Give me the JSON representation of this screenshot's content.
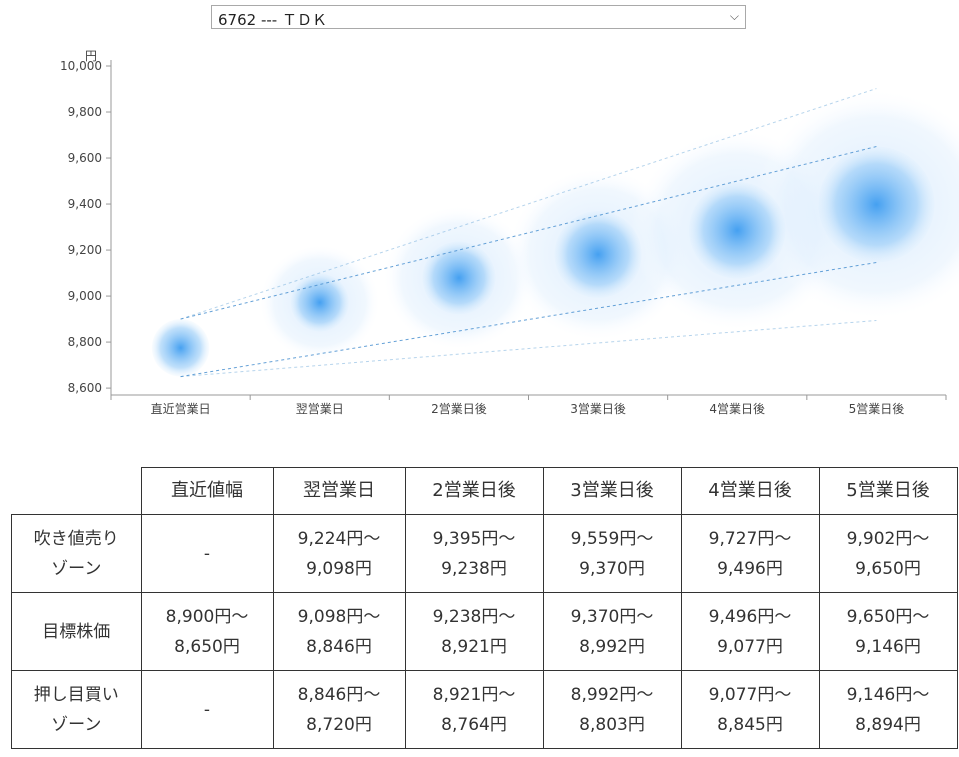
{
  "selector": {
    "value": "6762 ---  ＴＤＫ",
    "arrow": "chevron-down-icon"
  },
  "chart_data": {
    "type": "scatter",
    "unit_label": "円",
    "categories": [
      "直近営業日",
      "翌営業日",
      "2営業日後",
      "3営業日後",
      "4営業日後",
      "5営業日後"
    ],
    "yticks": [
      "10,000",
      "9,800",
      "9,600",
      "9,400",
      "9,200",
      "9,000",
      "8,800",
      "8,600"
    ],
    "ylim": [
      8570,
      10000
    ],
    "center": [
      8775,
      8972,
      9079,
      9181,
      9286,
      9398
    ],
    "inner_band_upper": [
      8900,
      9098,
      9238,
      9370,
      9496,
      9650
    ],
    "inner_band_lower": [
      8650,
      8846,
      8921,
      8992,
      9077,
      9146
    ],
    "outer_band_upper": [
      8900,
      9224,
      9395,
      9559,
      9727,
      9902
    ],
    "outer_band_lower": [
      8650,
      8720,
      8764,
      8803,
      8845,
      8894
    ],
    "colors": {
      "bubble": "#3d9cf0",
      "guide": "#7ab0dc",
      "axis": "#999999"
    }
  },
  "table": {
    "headers": [
      "",
      "直近値幅",
      "翌営業日",
      "2営業日後",
      "3営業日後",
      "4営業日後",
      "5営業日後"
    ],
    "rows": [
      {
        "label": [
          "吹き値売り",
          "ゾーン"
        ],
        "cells": [
          [
            "-"
          ],
          [
            "9,224円～",
            "9,098円"
          ],
          [
            "9,395円～",
            "9,238円"
          ],
          [
            "9,559円～",
            "9,370円"
          ],
          [
            "9,727円～",
            "9,496円"
          ],
          [
            "9,902円～",
            "9,650円"
          ]
        ]
      },
      {
        "label": [
          "目標株価"
        ],
        "cells": [
          [
            "8,900円～",
            "8,650円"
          ],
          [
            "9,098円～",
            "8,846円"
          ],
          [
            "9,238円～",
            "8,921円"
          ],
          [
            "9,370円～",
            "8,992円"
          ],
          [
            "9,496円～",
            "9,077円"
          ],
          [
            "9,650円～",
            "9,146円"
          ]
        ]
      },
      {
        "label": [
          "押し目買い",
          "ゾーン"
        ],
        "cells": [
          [
            "-"
          ],
          [
            "8,846円～",
            "8,720円"
          ],
          [
            "8,921円～",
            "8,764円"
          ],
          [
            "8,992円～",
            "8,803円"
          ],
          [
            "9,077円～",
            "8,845円"
          ],
          [
            "9,146円～",
            "8,894円"
          ]
        ]
      }
    ]
  }
}
